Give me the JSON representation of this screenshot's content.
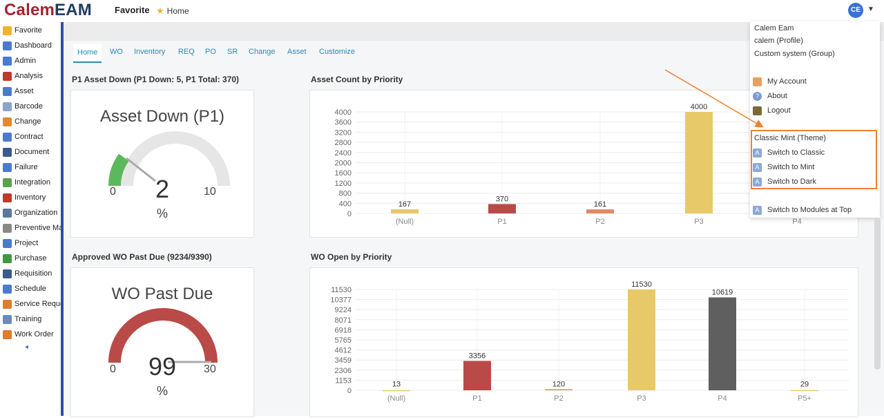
{
  "app": {
    "logo_part1": "Calem",
    "logo_part2": "EAM",
    "favorite_label": "Favorite",
    "home_label": "Home",
    "avatar_initials": "CE",
    "accent_color": "#2a8ab4"
  },
  "sidebar": {
    "items": [
      {
        "label": "Favorite",
        "icon": "star-icon",
        "color": "#f0b429"
      },
      {
        "label": "Dashboard",
        "icon": "dashboard-icon",
        "color": "#4a7bd0"
      },
      {
        "label": "Admin",
        "icon": "admin-icon",
        "color": "#4a7bd0"
      },
      {
        "label": "Analysis",
        "icon": "analysis-icon",
        "color": "#c0392b"
      },
      {
        "label": "Asset",
        "icon": "asset-icon",
        "color": "#4a7bd0"
      },
      {
        "label": "Barcode",
        "icon": "barcode-icon",
        "color": "#8aa5c8"
      },
      {
        "label": "Change",
        "icon": "change-icon",
        "color": "#e08a2a"
      },
      {
        "label": "Contract",
        "icon": "contract-icon",
        "color": "#4a7bd0"
      },
      {
        "label": "Document",
        "icon": "document-icon",
        "color": "#3a5a8a"
      },
      {
        "label": "Failure",
        "icon": "failure-icon",
        "color": "#4a7bd0"
      },
      {
        "label": "Integration",
        "icon": "integration-icon",
        "color": "#5aa34a"
      },
      {
        "label": "Inventory",
        "icon": "inventory-icon",
        "color": "#c0392b"
      },
      {
        "label": "Organization",
        "icon": "organization-icon",
        "color": "#5a7a9a"
      },
      {
        "label": "Preventive Ma",
        "icon": "preventive-icon",
        "color": "#888888"
      },
      {
        "label": "Project",
        "icon": "project-icon",
        "color": "#4a7bd0"
      },
      {
        "label": "Purchase",
        "icon": "dollar-icon",
        "color": "#3f9a3f"
      },
      {
        "label": "Requisition",
        "icon": "requisition-icon",
        "color": "#3a5a8a"
      },
      {
        "label": "Schedule",
        "icon": "schedule-icon",
        "color": "#4a7bd0"
      },
      {
        "label": "Service Reque",
        "icon": "service-request-icon",
        "color": "#e07b2a"
      },
      {
        "label": "Training",
        "icon": "training-icon",
        "color": "#6a8ac0"
      },
      {
        "label": "Work Order",
        "icon": "work-order-icon",
        "color": "#e07b2a"
      }
    ],
    "collapse_glyph": "◂"
  },
  "tabs": [
    {
      "label": "Home",
      "active": true
    },
    {
      "label": "WO"
    },
    {
      "label": "Inventory"
    },
    {
      "label": "REQ"
    },
    {
      "label": "PO"
    },
    {
      "label": "SR"
    },
    {
      "label": "Change"
    },
    {
      "label": "Asset"
    },
    {
      "label": "Customize"
    }
  ],
  "panels": {
    "p1_title": "P1 Asset Down (P1 Down: 5, P1 Total: 370)",
    "asset_count_title": "Asset Count by Priority",
    "wo_past_due_title": "Approved WO Past Due (9234/9390)",
    "wo_open_title": "WO Open by Priority"
  },
  "gauges": {
    "asset_down": {
      "title": "Asset Down (P1)",
      "min": "0",
      "max": "10",
      "value": "2",
      "unit": "%",
      "fraction": 0.2,
      "color": "#5cb85c"
    },
    "wo_past_due": {
      "title": "WO Past Due",
      "min": "0",
      "max": "30",
      "value": "99",
      "unit": "%",
      "fraction": 1.0,
      "color": "#b94a48"
    }
  },
  "chart_data": [
    {
      "type": "bar",
      "title": "Asset Count by Priority",
      "categories": [
        "(Null)",
        "P1",
        "P2",
        "P3",
        "P4"
      ],
      "values": [
        167,
        370,
        161,
        4000,
        null
      ],
      "colors": [
        "#e8c96a",
        "#b94a48",
        "#e08a6a",
        "#e8c96a",
        "#e8c96a"
      ],
      "yticks": [
        "0",
        "400",
        "800",
        "1200",
        "1600",
        "2000",
        "2400",
        "2800",
        "3200",
        "3600",
        "4000"
      ],
      "ylim": [
        0,
        4000
      ],
      "grid": true
    },
    {
      "type": "bar",
      "title": "WO Open by Priority",
      "categories": [
        "(Null)",
        "P1",
        "P2",
        "P3",
        "P4",
        "P5+"
      ],
      "values": [
        13,
        3356,
        120,
        11530,
        10619,
        29
      ],
      "colors": [
        "#e8c96a",
        "#b94a48",
        "#e08a6a",
        "#e8c96a",
        "#5f5f5f",
        "#e8c96a"
      ],
      "yticks": [
        "0",
        "1153",
        "2306",
        "3459",
        "4612",
        "5765",
        "6918",
        "8071",
        "9224",
        "10377",
        "11530"
      ],
      "ylim": [
        0,
        11530
      ],
      "grid": true
    }
  ],
  "dropdown": {
    "user_name": "Calem Eam",
    "profile": "calem (Profile)",
    "group": "Custom system (Group)",
    "my_account": "My Account",
    "about": "About",
    "logout": "Logout",
    "theme_header": "Classic Mint (Theme)",
    "switch_classic": "Switch to Classic",
    "switch_mint": "Switch to Mint",
    "switch_dark": "Switch to Dark",
    "switch_modules_top": "Switch to Modules at Top",
    "highlight_color": "#f07f2e"
  }
}
